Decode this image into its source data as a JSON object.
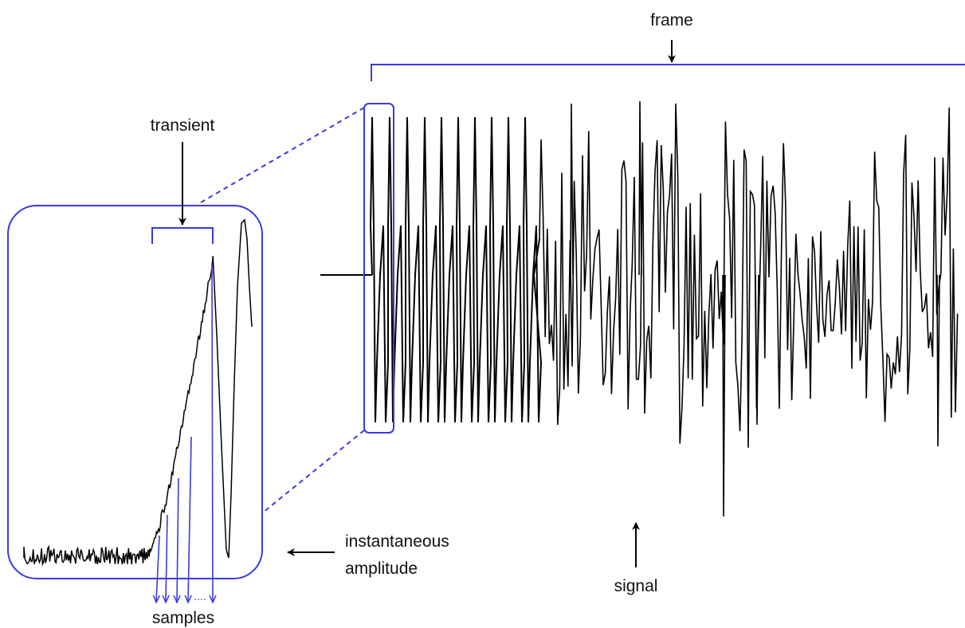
{
  "labels": {
    "frame": "frame",
    "transient": "transient",
    "instantaneous_line1": "instantaneous",
    "instantaneous_line2": "amplitude",
    "signal": "signal",
    "samples": "samples",
    "dots": "...."
  },
  "colors": {
    "annotation_blue": "#3a3ae0",
    "waveform": "#000000",
    "arrow": "#000000"
  }
}
